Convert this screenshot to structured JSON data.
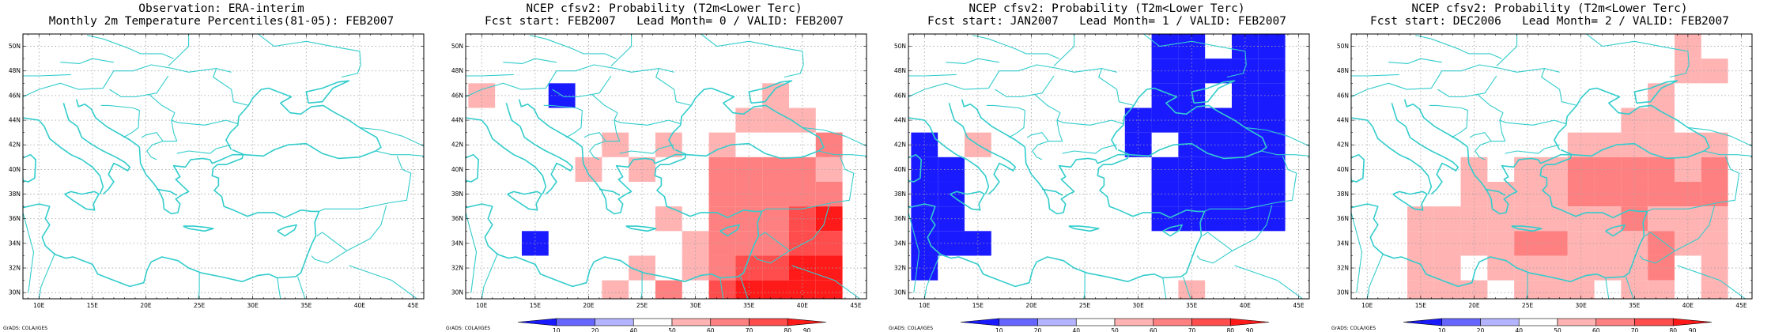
{
  "credit": "GrADS: COLA/IGES",
  "x_tick_labels": [
    "10E",
    "15E",
    "20E",
    "25E",
    "30E",
    "35E",
    "40E",
    "45E"
  ],
  "y_tick_labels": [
    "30N",
    "32N",
    "34N",
    "36N",
    "38N",
    "40N",
    "42N",
    "44N",
    "46N",
    "48N",
    "50N"
  ],
  "colorbar": {
    "labels": [
      "10",
      "20",
      "40",
      "50",
      "60",
      "70",
      "80",
      "90"
    ],
    "colors": [
      "#1a1aff",
      "#6666ff",
      "#b3b3ff",
      "#ffffff",
      "#ffb3b3",
      "#ff8080",
      "#ff4d4d",
      "#ff1a1a"
    ]
  },
  "colors": {
    "coast": "#33cccc",
    "border": "#33cccc",
    "grid": "#a0a0a0",
    "frame": "#000000"
  },
  "panels": [
    {
      "title_line1": "Observation: ERA-interim",
      "title_line2": "Monthly 2m Temperature Percentiles(81-05): FEB2007",
      "show_colorbar": false,
      "cells": []
    },
    {
      "title_line1": "NCEP cfsv2: Probability (T2m<Lower Terc)",
      "title_line2": "Fcst start: FEB2007   Lead Month= 0 / VALID: FEB2007",
      "show_colorbar": true,
      "cells": [
        {
          "lon": 10,
          "lat": 46,
          "level": "50-60"
        },
        {
          "lon": 17.5,
          "lat": 46,
          "level": "10-20"
        },
        {
          "lon": 15,
          "lat": 34,
          "level": "10-20"
        },
        {
          "lon": 20,
          "lat": 40,
          "level": "50-60"
        },
        {
          "lon": 22.5,
          "lat": 42,
          "level": "50-60"
        },
        {
          "lon": 25,
          "lat": 40,
          "level": "50-60"
        },
        {
          "lon": 27.5,
          "lat": 42,
          "level": "50-60"
        },
        {
          "lon": 27.5,
          "lat": 36,
          "level": "50-60"
        },
        {
          "lon": 30,
          "lat": 34,
          "level": "50-60"
        },
        {
          "lon": 30,
          "lat": 32,
          "level": "50-60"
        },
        {
          "lon": 25,
          "lat": 32,
          "level": "50-60"
        },
        {
          "lon": 22.5,
          "lat": 30,
          "level": "50-60"
        },
        {
          "lon": 27.5,
          "lat": 30,
          "level": "60-70"
        },
        {
          "lon": 32.5,
          "lat": 42,
          "level": "50-60"
        },
        {
          "lon": 35,
          "lat": 44,
          "level": "50-60"
        },
        {
          "lon": 37.5,
          "lat": 44,
          "level": "50-60"
        },
        {
          "lon": 37.5,
          "lat": 46,
          "level": "50-60"
        },
        {
          "lon": 40,
          "lat": 44,
          "level": "50-60"
        },
        {
          "lon": 42.5,
          "lat": 40,
          "level": "50-60"
        },
        {
          "lon": 32.5,
          "lat": 40,
          "level": "60-70"
        },
        {
          "lon": 35,
          "lat": 40,
          "level": "60-70"
        },
        {
          "lon": 37.5,
          "lat": 40,
          "level": "60-70"
        },
        {
          "lon": 40,
          "lat": 40,
          "level": "60-70"
        },
        {
          "lon": 32.5,
          "lat": 38,
          "level": "60-70"
        },
        {
          "lon": 35,
          "lat": 38,
          "level": "60-70"
        },
        {
          "lon": 37.5,
          "lat": 38,
          "level": "60-70"
        },
        {
          "lon": 32.5,
          "lat": 36,
          "level": "60-70"
        },
        {
          "lon": 35,
          "lat": 36,
          "level": "60-70"
        },
        {
          "lon": 32.5,
          "lat": 34,
          "level": "60-70"
        },
        {
          "lon": 35,
          "lat": 34,
          "level": "60-70"
        },
        {
          "lon": 37.5,
          "lat": 36,
          "level": "60-70"
        },
        {
          "lon": 40,
          "lat": 38,
          "level": "60-70"
        },
        {
          "lon": 42.5,
          "lat": 38,
          "level": "60-70"
        },
        {
          "lon": 37.5,
          "lat": 34,
          "level": "60-70"
        },
        {
          "lon": 40,
          "lat": 36,
          "level": "70-80"
        },
        {
          "lon": 40,
          "lat": 34,
          "level": "70-80"
        },
        {
          "lon": 42.5,
          "lat": 36,
          "level": "80-90"
        },
        {
          "lon": 42.5,
          "lat": 34,
          "level": "70-80"
        },
        {
          "lon": 42.5,
          "lat": 42,
          "level": "60-70"
        },
        {
          "lon": 32.5,
          "lat": 32,
          "level": "60-70"
        },
        {
          "lon": 35,
          "lat": 32,
          "level": "70-80"
        },
        {
          "lon": 37.5,
          "lat": 32,
          "level": "70-80"
        },
        {
          "lon": 40,
          "lat": 32,
          "level": "80-90"
        },
        {
          "lon": 42.5,
          "lat": 32,
          "level": "80-90"
        },
        {
          "lon": 32.5,
          "lat": 30,
          "level": "70-80"
        },
        {
          "lon": 35,
          "lat": 30,
          "level": "80-90"
        },
        {
          "lon": 37.5,
          "lat": 30,
          "level": "80-90"
        },
        {
          "lon": 40,
          "lat": 30,
          "level": "80-90"
        },
        {
          "lon": 42.5,
          "lat": 30,
          "level": "80-90"
        }
      ]
    },
    {
      "title_line1": "NCEP cfsv2: Probability (T2m<Lower Terc)",
      "title_line2": "Fcst start: JAN2007   Lead Month= 1 / VALID: FEB2007",
      "show_colorbar": true,
      "cells": [
        {
          "lon": 32.5,
          "lat": 48,
          "level": "10-20"
        },
        {
          "lon": 35,
          "lat": 48,
          "level": "10-20"
        },
        {
          "lon": 37.5,
          "lat": 48,
          "level": "10-20"
        },
        {
          "lon": 40,
          "lat": 48,
          "level": "10-20"
        },
        {
          "lon": 42.5,
          "lat": 48,
          "level": "10-20"
        },
        {
          "lon": 42.5,
          "lat": 50,
          "level": "10-20"
        },
        {
          "lon": 32.5,
          "lat": 50,
          "level": "10-20"
        },
        {
          "lon": 35,
          "lat": 50,
          "level": "10-20"
        },
        {
          "lon": 40,
          "lat": 50,
          "level": "10-20"
        },
        {
          "lon": 32.5,
          "lat": 46,
          "level": "10-20"
        },
        {
          "lon": 35,
          "lat": 46,
          "level": "10-20"
        },
        {
          "lon": 40,
          "lat": 46,
          "level": "10-20"
        },
        {
          "lon": 42.5,
          "lat": 46,
          "level": "10-20"
        },
        {
          "lon": 30,
          "lat": 44,
          "level": "10-20"
        },
        {
          "lon": 32.5,
          "lat": 44,
          "level": "10-20"
        },
        {
          "lon": 35,
          "lat": 44,
          "level": "10-20"
        },
        {
          "lon": 37.5,
          "lat": 44,
          "level": "10-20"
        },
        {
          "lon": 40,
          "lat": 44,
          "level": "10-20"
        },
        {
          "lon": 42.5,
          "lat": 44,
          "level": "10-20"
        },
        {
          "lon": 30,
          "lat": 42,
          "level": "10-20"
        },
        {
          "lon": 35,
          "lat": 42,
          "level": "10-20"
        },
        {
          "lon": 37.5,
          "lat": 42,
          "level": "10-20"
        },
        {
          "lon": 40,
          "lat": 42,
          "level": "10-20"
        },
        {
          "lon": 42.5,
          "lat": 42,
          "level": "10-20"
        },
        {
          "lon": 32.5,
          "lat": 40,
          "level": "10-20"
        },
        {
          "lon": 35,
          "lat": 40,
          "level": "10-20"
        },
        {
          "lon": 37.5,
          "lat": 40,
          "level": "10-20"
        },
        {
          "lon": 40,
          "lat": 40,
          "level": "10-20"
        },
        {
          "lon": 42.5,
          "lat": 40,
          "level": "10-20"
        },
        {
          "lon": 32.5,
          "lat": 38,
          "level": "10-20"
        },
        {
          "lon": 35,
          "lat": 38,
          "level": "10-20"
        },
        {
          "lon": 37.5,
          "lat": 38,
          "level": "10-20"
        },
        {
          "lon": 40,
          "lat": 38,
          "level": "10-20"
        },
        {
          "lon": 42.5,
          "lat": 38,
          "level": "10-20"
        },
        {
          "lon": 32.5,
          "lat": 36,
          "level": "10-20"
        },
        {
          "lon": 35,
          "lat": 36,
          "level": "10-20"
        },
        {
          "lon": 37.5,
          "lat": 36,
          "level": "10-20"
        },
        {
          "lon": 40,
          "lat": 36,
          "level": "10-20"
        },
        {
          "lon": 42.5,
          "lat": 36,
          "level": "10-20"
        },
        {
          "lon": 15,
          "lat": 42,
          "level": "50-60"
        },
        {
          "lon": 10,
          "lat": 42,
          "level": "10-20"
        },
        {
          "lon": 10,
          "lat": 40,
          "level": "10-20"
        },
        {
          "lon": 12.5,
          "lat": 40,
          "level": "10-20"
        },
        {
          "lon": 10,
          "lat": 38,
          "level": "10-20"
        },
        {
          "lon": 12.5,
          "lat": 38,
          "level": "10-20"
        },
        {
          "lon": 10,
          "lat": 36,
          "level": "10-20"
        },
        {
          "lon": 12.5,
          "lat": 36,
          "level": "10-20"
        },
        {
          "lon": 10,
          "lat": 34,
          "level": "10-20"
        },
        {
          "lon": 12.5,
          "lat": 34,
          "level": "10-20"
        },
        {
          "lon": 15,
          "lat": 34,
          "level": "10-20"
        },
        {
          "lon": 10,
          "lat": 32,
          "level": "10-20"
        },
        {
          "lon": 35,
          "lat": 30,
          "level": "50-60"
        }
      ]
    },
    {
      "title_line1": "NCEP cfsv2: Probability (T2m<Lower Terc)",
      "title_line2": "Fcst start: DEC2006   Lead Month= 2 / VALID: FEB2007",
      "show_colorbar": true,
      "cells": [
        {
          "lon": 40,
          "lat": 50,
          "level": "50-60"
        },
        {
          "lon": 40,
          "lat": 48,
          "level": "50-60"
        },
        {
          "lon": 42.5,
          "lat": 48,
          "level": "50-60"
        },
        {
          "lon": 37.5,
          "lat": 46,
          "level": "50-60"
        },
        {
          "lon": 35,
          "lat": 44,
          "level": "50-60"
        },
        {
          "lon": 37.5,
          "lat": 44,
          "level": "50-60"
        },
        {
          "lon": 30,
          "lat": 42,
          "level": "50-60"
        },
        {
          "lon": 32.5,
          "lat": 42,
          "level": "50-60"
        },
        {
          "lon": 35,
          "lat": 42,
          "level": "50-60"
        },
        {
          "lon": 37.5,
          "lat": 42,
          "level": "50-60"
        },
        {
          "lon": 40,
          "lat": 42,
          "level": "50-60"
        },
        {
          "lon": 42.5,
          "lat": 42,
          "level": "50-60"
        },
        {
          "lon": 20,
          "lat": 40,
          "level": "50-60"
        },
        {
          "lon": 25,
          "lat": 40,
          "level": "50-60"
        },
        {
          "lon": 27.5,
          "lat": 40,
          "level": "50-60"
        },
        {
          "lon": 30,
          "lat": 40,
          "level": "60-70"
        },
        {
          "lon": 32.5,
          "lat": 40,
          "level": "60-70"
        },
        {
          "lon": 35,
          "lat": 40,
          "level": "60-70"
        },
        {
          "lon": 37.5,
          "lat": 40,
          "level": "60-70"
        },
        {
          "lon": 40,
          "lat": 40,
          "level": "50-60"
        },
        {
          "lon": 42.5,
          "lat": 40,
          "level": "60-70"
        },
        {
          "lon": 20,
          "lat": 38,
          "level": "50-60"
        },
        {
          "lon": 22.5,
          "lat": 38,
          "level": "50-60"
        },
        {
          "lon": 25,
          "lat": 38,
          "level": "50-60"
        },
        {
          "lon": 27.5,
          "lat": 38,
          "level": "50-60"
        },
        {
          "lon": 30,
          "lat": 38,
          "level": "60-70"
        },
        {
          "lon": 32.5,
          "lat": 38,
          "level": "60-70"
        },
        {
          "lon": 35,
          "lat": 38,
          "level": "60-70"
        },
        {
          "lon": 37.5,
          "lat": 38,
          "level": "60-70"
        },
        {
          "lon": 40,
          "lat": 38,
          "level": "60-70"
        },
        {
          "lon": 42.5,
          "lat": 38,
          "level": "60-70"
        },
        {
          "lon": 15,
          "lat": 36,
          "level": "50-60"
        },
        {
          "lon": 17.5,
          "lat": 36,
          "level": "50-60"
        },
        {
          "lon": 20,
          "lat": 36,
          "level": "50-60"
        },
        {
          "lon": 22.5,
          "lat": 36,
          "level": "50-60"
        },
        {
          "lon": 25,
          "lat": 36,
          "level": "50-60"
        },
        {
          "lon": 27.5,
          "lat": 36,
          "level": "50-60"
        },
        {
          "lon": 30,
          "lat": 36,
          "level": "50-60"
        },
        {
          "lon": 32.5,
          "lat": 36,
          "level": "50-60"
        },
        {
          "lon": 35,
          "lat": 36,
          "level": "60-70"
        },
        {
          "lon": 37.5,
          "lat": 36,
          "level": "50-60"
        },
        {
          "lon": 40,
          "lat": 36,
          "level": "50-60"
        },
        {
          "lon": 42.5,
          "lat": 36,
          "level": "50-60"
        },
        {
          "lon": 15,
          "lat": 34,
          "level": "50-60"
        },
        {
          "lon": 17.5,
          "lat": 34,
          "level": "50-60"
        },
        {
          "lon": 20,
          "lat": 34,
          "level": "50-60"
        },
        {
          "lon": 22.5,
          "lat": 34,
          "level": "50-60"
        },
        {
          "lon": 25,
          "lat": 34,
          "level": "60-70"
        },
        {
          "lon": 27.5,
          "lat": 34,
          "level": "60-70"
        },
        {
          "lon": 30,
          "lat": 34,
          "level": "50-60"
        },
        {
          "lon": 32.5,
          "lat": 34,
          "level": "50-60"
        },
        {
          "lon": 35,
          "lat": 34,
          "level": "50-60"
        },
        {
          "lon": 37.5,
          "lat": 34,
          "level": "60-70"
        },
        {
          "lon": 40,
          "lat": 34,
          "level": "50-60"
        },
        {
          "lon": 42.5,
          "lat": 34,
          "level": "50-60"
        },
        {
          "lon": 15,
          "lat": 32,
          "level": "50-60"
        },
        {
          "lon": 17.5,
          "lat": 32,
          "level": "50-60"
        },
        {
          "lon": 22.5,
          "lat": 32,
          "level": "50-60"
        },
        {
          "lon": 25,
          "lat": 32,
          "level": "50-60"
        },
        {
          "lon": 27.5,
          "lat": 32,
          "level": "50-60"
        },
        {
          "lon": 30,
          "lat": 32,
          "level": "50-60"
        },
        {
          "lon": 32.5,
          "lat": 32,
          "level": "50-60"
        },
        {
          "lon": 35,
          "lat": 32,
          "level": "50-60"
        },
        {
          "lon": 37.5,
          "lat": 32,
          "level": "60-70"
        },
        {
          "lon": 42.5,
          "lat": 32,
          "level": "50-60"
        },
        {
          "lon": 15,
          "lat": 30,
          "level": "50-60"
        },
        {
          "lon": 17.5,
          "lat": 30,
          "level": "50-60"
        },
        {
          "lon": 20,
          "lat": 30,
          "level": "50-60"
        },
        {
          "lon": 25,
          "lat": 30,
          "level": "50-60"
        },
        {
          "lon": 27.5,
          "lat": 30,
          "level": "50-60"
        },
        {
          "lon": 30,
          "lat": 30,
          "level": "50-60"
        },
        {
          "lon": 35,
          "lat": 30,
          "level": "50-60"
        },
        {
          "lon": 37.5,
          "lat": 30,
          "level": "50-60"
        },
        {
          "lon": 42.5,
          "lat": 30,
          "level": "50-60"
        }
      ]
    }
  ]
}
